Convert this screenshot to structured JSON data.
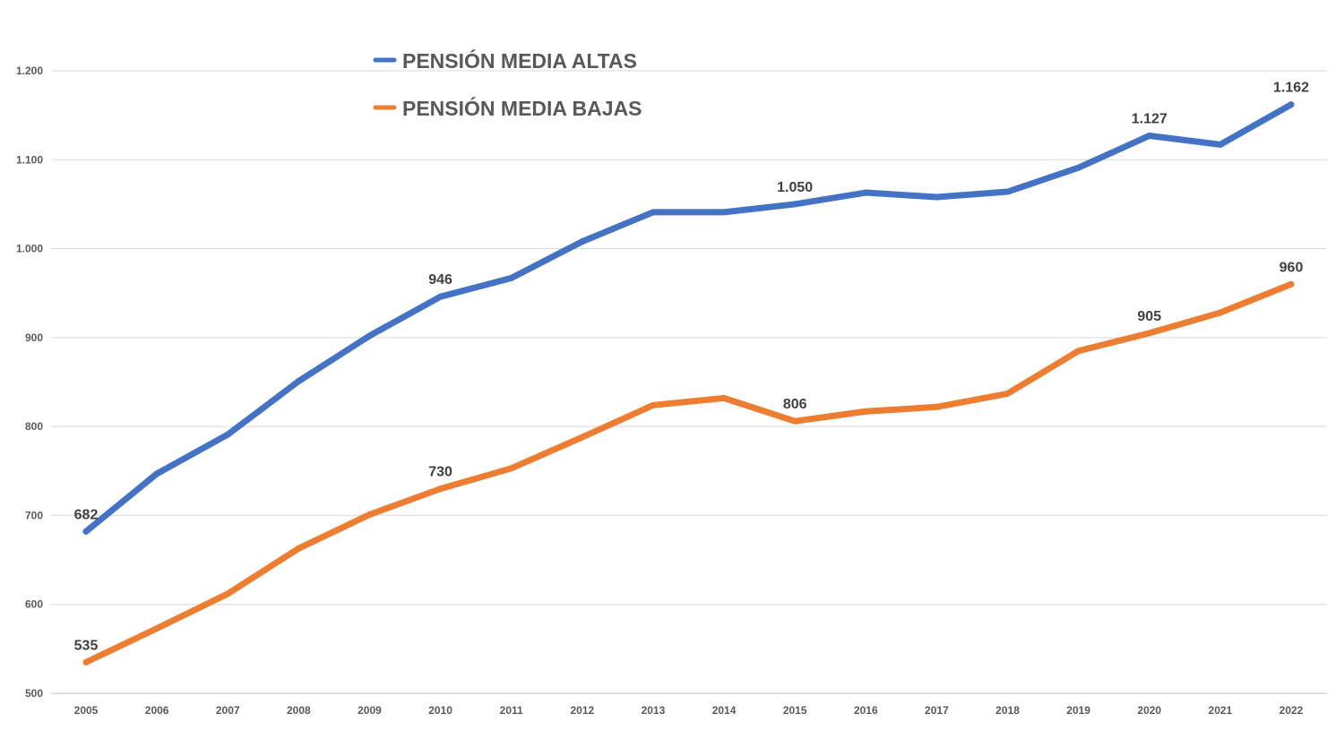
{
  "chart_data": {
    "type": "line",
    "title": "",
    "xlabel": "",
    "ylabel": "",
    "ylim": [
      500,
      1200
    ],
    "yticks": [
      "500",
      "600",
      "700",
      "800",
      "900",
      "1.000",
      "1.100",
      "1.200"
    ],
    "ytick_values": [
      500,
      600,
      700,
      800,
      900,
      1000,
      1100,
      1200
    ],
    "grid": "horizontal",
    "legend_position": "top-left",
    "categories": [
      "2005",
      "2006",
      "2007",
      "2008",
      "2009",
      "2010",
      "2011",
      "2012",
      "2013",
      "2014",
      "2015",
      "2016",
      "2017",
      "2018",
      "2019",
      "2020",
      "2021",
      "2022"
    ],
    "series": [
      {
        "name": "PENSIÓN MEDIA ALTAS",
        "color": "#4472C4",
        "values": [
          682,
          747,
          791,
          851,
          902,
          946,
          967,
          1008,
          1041,
          1041,
          1050,
          1063,
          1058,
          1064,
          1091,
          1127,
          1117,
          1162
        ],
        "labels": [
          "682",
          null,
          null,
          null,
          null,
          "946",
          null,
          null,
          null,
          null,
          "1.050",
          null,
          null,
          null,
          null,
          "1.127",
          null,
          "1.162"
        ]
      },
      {
        "name": "PENSIÓN MEDIA BAJAS",
        "color": "#ED7D31",
        "values": [
          535,
          573,
          612,
          663,
          701,
          730,
          753,
          788,
          824,
          832,
          806,
          817,
          822,
          837,
          885,
          905,
          928,
          960
        ],
        "labels": [
          "535",
          null,
          null,
          null,
          null,
          "730",
          null,
          null,
          null,
          null,
          "806",
          null,
          null,
          null,
          null,
          "905",
          null,
          "960"
        ]
      }
    ]
  }
}
